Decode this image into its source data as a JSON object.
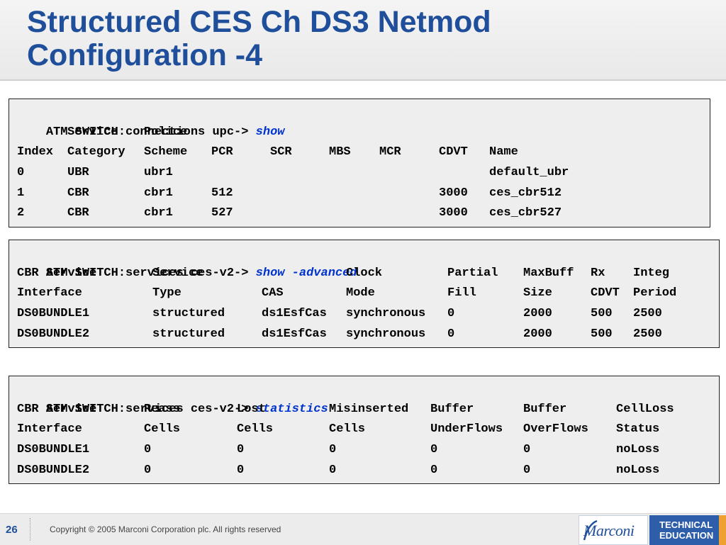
{
  "title": {
    "line1": "Structured CES Ch DS3 Netmod",
    "line2": "Configuration -4"
  },
  "panel1": {
    "prompt": "ATM SWITCH:connections upc->",
    "command": "show",
    "header1": [
      "",
      "Service",
      "Police",
      "",
      "",
      "",
      "",
      "",
      ""
    ],
    "header2": [
      "Index",
      "Category",
      "Scheme",
      "PCR",
      "SCR",
      "MBS",
      "MCR",
      "CDVT",
      "Name"
    ],
    "rows": [
      [
        "0",
        "UBR",
        "ubr1",
        "",
        "",
        "",
        "",
        "",
        "default_ubr"
      ],
      [
        "1",
        "CBR",
        "cbr1",
        "512",
        "",
        "",
        "",
        "3000",
        "ces_cbr512"
      ],
      [
        "2",
        "CBR",
        "cbr1",
        "527",
        "",
        "",
        "",
        "3000",
        "ces_cbr527"
      ]
    ]
  },
  "panel2": {
    "prompt": "ATM SWITCH:services ces-v2->",
    "command": "show -advanced",
    "header1": [
      "CBR Service",
      "Service",
      "",
      "Clock",
      "Partial",
      "MaxBuff",
      "Rx",
      "Integ"
    ],
    "header2": [
      "Interface",
      "Type",
      "CAS",
      "Mode",
      "Fill",
      "Size",
      "CDVT",
      "Period"
    ],
    "rows": [
      [
        "DS0BUNDLE1",
        "structured",
        "ds1EsfCas",
        "synchronous",
        "0",
        "2000",
        "500",
        "2500"
      ],
      [
        "DS0BUNDLE2",
        "structured",
        "ds1EsfCas",
        "synchronous",
        "0",
        "2000",
        "500",
        "2500"
      ]
    ]
  },
  "panel3": {
    "prompt": "ATM SWITCH:services ces-v2->",
    "command": "statistics",
    "header1": [
      "CBR Service",
      "Reass",
      "Lost",
      "Misinserted",
      "Buffer",
      "Buffer",
      "CellLoss"
    ],
    "header2": [
      "Interface",
      "Cells",
      "Cells",
      "Cells",
      "UnderFlows",
      "OverFlows",
      "Status"
    ],
    "rows": [
      [
        "DS0BUNDLE1",
        "0",
        "0",
        "0",
        "0",
        "0",
        "noLoss"
      ],
      [
        "DS0BUNDLE2",
        "0",
        "0",
        "0",
        "0",
        "0",
        "noLoss"
      ]
    ]
  },
  "footer": {
    "page_number": "26",
    "copyright": "Copyright © 2005 Marconi Corporation plc. All rights reserved",
    "logo": "Marconi",
    "tech_line1": "TECHNICAL",
    "tech_line2": "EDUCATION"
  },
  "colors": {
    "title": "#1f4e9b",
    "command": "#0033cc",
    "panel_bg": "#eeeeee",
    "tech_box": "#2e5ea9",
    "orange_strip": "#f0a030"
  }
}
